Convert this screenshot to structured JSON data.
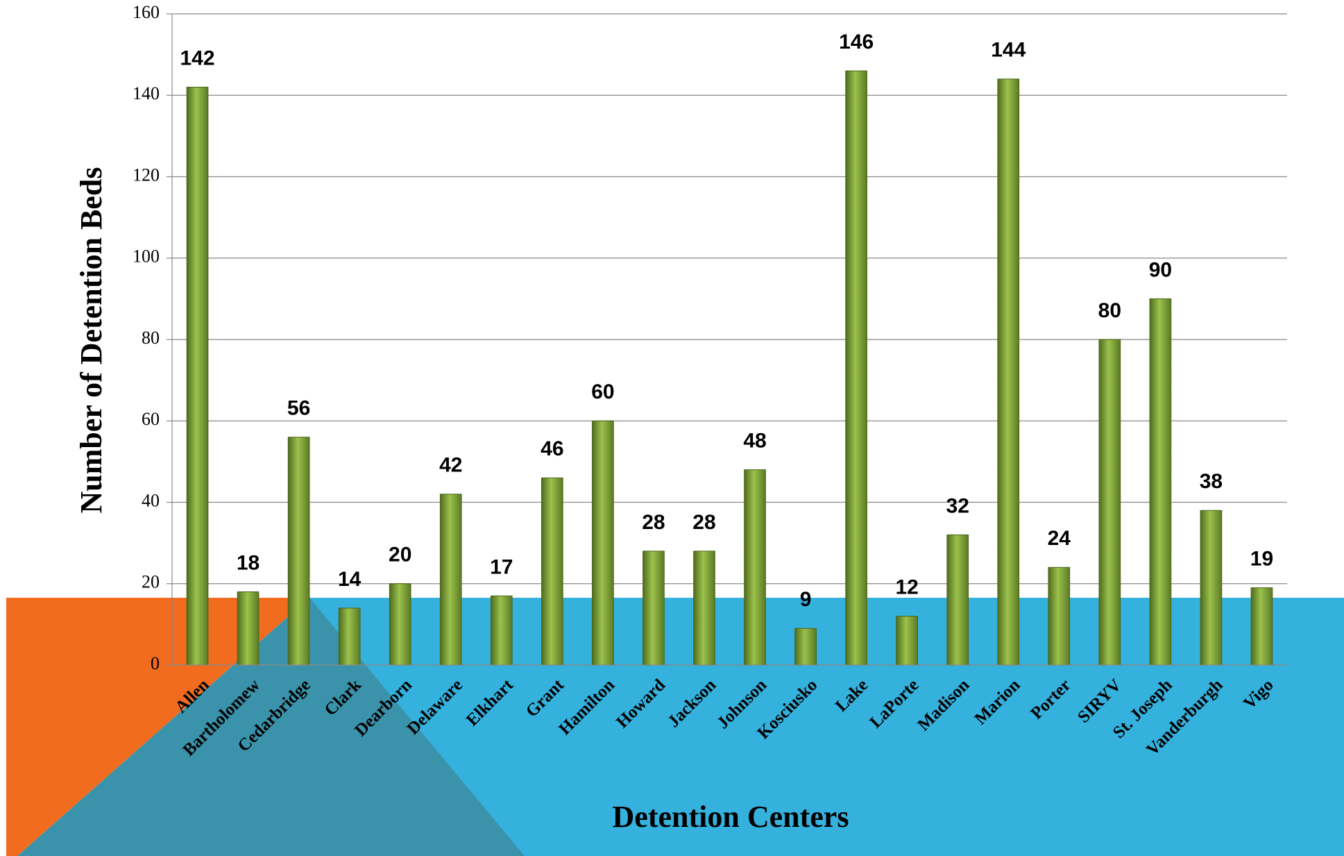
{
  "chart_data": {
    "type": "bar",
    "x_label": "Detention Centers",
    "y_label": "Number of Detention Beds",
    "categories": [
      "Allen",
      "Bartholomew",
      "Cedarbridge",
      "Clark",
      "Dearborn",
      "Delaware",
      "Elkhart",
      "Grant",
      "Hamilton",
      "Howard",
      "Jackson",
      "Johnson",
      "Kosciusko",
      "Lake",
      "LaPorte",
      "Madison",
      "Marion",
      "Porter",
      "SIRYV",
      "St. Joseph",
      "Vanderburgh",
      "Vigo"
    ],
    "values": [
      142,
      18,
      56,
      14,
      20,
      42,
      17,
      46,
      60,
      28,
      28,
      48,
      9,
      146,
      12,
      32,
      144,
      24,
      80,
      90,
      38,
      19
    ],
    "color": "#7ea33a",
    "ylim": [
      0,
      160
    ],
    "yticks": [
      0,
      20,
      40,
      60,
      80,
      100,
      120,
      140,
      160
    ],
    "grid": true
  }
}
